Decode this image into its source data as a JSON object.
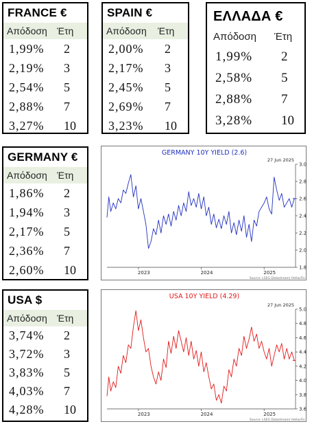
{
  "tables": {
    "france": {
      "title": "FRANCE €",
      "header": [
        "Απόδοση",
        "Έτη"
      ],
      "rows": [
        [
          "1,99%",
          "2"
        ],
        [
          "2,19%",
          "3"
        ],
        [
          "2,54%",
          "5"
        ],
        [
          "2,88%",
          "7"
        ],
        [
          "3,27%",
          "10"
        ]
      ]
    },
    "spain": {
      "title": "SPAIN €",
      "header": [
        "Απόδοση",
        "Έτη"
      ],
      "rows": [
        [
          "2,00%",
          "2"
        ],
        [
          "2,17%",
          "3"
        ],
        [
          "2,45%",
          "5"
        ],
        [
          "2,69%",
          "7"
        ],
        [
          "3,23%",
          "10"
        ]
      ]
    },
    "greece": {
      "title": "ΕΛΛΑΔΑ €",
      "header": [
        "Απόδοση",
        "Έτη"
      ],
      "rows": [
        [
          "1,99%",
          "2"
        ],
        [
          "2,58%",
          "5"
        ],
        [
          "2,88%",
          "7"
        ],
        [
          "3,28%",
          "10"
        ]
      ]
    },
    "germany": {
      "title": "GERMANY €",
      "header": [
        "Απόδοση",
        "Έτη"
      ],
      "rows": [
        [
          "1,86%",
          "2"
        ],
        [
          "1,94%",
          "3"
        ],
        [
          "2,17%",
          "5"
        ],
        [
          "2,36%",
          "7"
        ],
        [
          "2,60%",
          "10"
        ]
      ]
    },
    "usa": {
      "title": "USA $",
      "header": [
        "Απόδοση",
        "Έτη"
      ],
      "rows": [
        [
          "3,74%",
          "2"
        ],
        [
          "3,72%",
          "3"
        ],
        [
          "3,83%",
          "5"
        ],
        [
          "4,03%",
          "7"
        ],
        [
          "4,28%",
          "10"
        ]
      ]
    }
  },
  "chart_data": [
    {
      "type": "line",
      "title": "GERMANY 10Y YIELD  (2.6)",
      "date_label": "27 Jun 2025",
      "source": "Source: LSEG Datastream/ HellasFin",
      "color": "#1f2fbf",
      "x_ticks": [
        "2023",
        "2024",
        "2025"
      ],
      "x_tick_positions": [
        2023.0,
        2024.0,
        2025.0
      ],
      "xlim": [
        2022.5,
        2025.5
      ],
      "ylim": [
        1.8,
        3.0
      ],
      "y_ticks": [
        1.8,
        2.0,
        2.2,
        2.4,
        2.6,
        2.8,
        3.0
      ],
      "y_tick_labels": [
        "1.8",
        "2.0",
        "2.2",
        "2.4",
        "2.6",
        "2.8",
        "3.0"
      ],
      "series": [
        {
          "x": [
            2022.5,
            2022.53,
            2022.56,
            2022.6,
            2022.64,
            2022.68,
            2022.72,
            2022.76,
            2022.8,
            2022.84,
            2022.88,
            2022.92,
            2022.96,
            2023.0,
            2023.04,
            2023.08,
            2023.12,
            2023.16,
            2023.2,
            2023.24,
            2023.28,
            2023.32,
            2023.36,
            2023.4,
            2023.44,
            2023.48,
            2023.52,
            2023.56,
            2023.6,
            2023.64,
            2023.68,
            2023.72,
            2023.76,
            2023.8,
            2023.84,
            2023.88,
            2023.92,
            2023.96,
            2024.0,
            2024.04,
            2024.08,
            2024.12,
            2024.16,
            2024.2,
            2024.24,
            2024.28,
            2024.32,
            2024.36,
            2024.4,
            2024.44,
            2024.48,
            2024.52,
            2024.56,
            2024.6,
            2024.64,
            2024.68,
            2024.72,
            2024.76,
            2024.8,
            2024.84,
            2024.88,
            2024.92,
            2024.96,
            2025.0,
            2025.04,
            2025.08,
            2025.12,
            2025.16,
            2025.2,
            2025.24,
            2025.28,
            2025.32,
            2025.36,
            2025.4,
            2025.44,
            2025.48
          ],
          "y": [
            2.38,
            2.62,
            2.45,
            2.55,
            2.48,
            2.6,
            2.55,
            2.7,
            2.66,
            2.78,
            2.88,
            2.62,
            2.75,
            2.48,
            2.6,
            2.45,
            2.3,
            2.02,
            2.1,
            2.25,
            2.18,
            2.35,
            2.2,
            2.4,
            2.3,
            2.42,
            2.28,
            2.45,
            2.35,
            2.52,
            2.4,
            2.55,
            2.45,
            2.68,
            2.52,
            2.6,
            2.5,
            2.66,
            2.48,
            2.62,
            2.4,
            2.5,
            2.3,
            2.42,
            2.26,
            2.36,
            2.25,
            2.4,
            2.3,
            2.45,
            2.2,
            2.32,
            2.18,
            2.35,
            2.22,
            2.4,
            2.15,
            2.3,
            2.1,
            2.35,
            2.28,
            2.45,
            2.5,
            2.55,
            2.62,
            2.48,
            2.42,
            2.85,
            2.7,
            2.58,
            2.66,
            2.5,
            2.55,
            2.6,
            2.5,
            2.6
          ]
        }
      ]
    },
    {
      "type": "line",
      "title": "USA 10Y YIELD  (4.29)",
      "date_label": "27 Jun 2025",
      "source": "Source: LSEG Datastream/ HellasFin",
      "color": "#e01818",
      "x_ticks": [
        "2023",
        "2024",
        "2025"
      ],
      "x_tick_positions": [
        2023.0,
        2024.0,
        2025.0
      ],
      "xlim": [
        2022.5,
        2025.5
      ],
      "ylim": [
        3.6,
        5.0
      ],
      "y_ticks": [
        3.6,
        3.8,
        4.0,
        4.2,
        4.4,
        4.6,
        4.8,
        5.0
      ],
      "y_tick_labels": [
        "3.6",
        "3.8",
        "4.0",
        "4.2",
        "4.4",
        "4.6",
        "4.8",
        "5.0"
      ],
      "series": [
        {
          "x": [
            2022.5,
            2022.53,
            2022.56,
            2022.6,
            2022.64,
            2022.68,
            2022.72,
            2022.76,
            2022.8,
            2022.84,
            2022.88,
            2022.92,
            2022.96,
            2023.0,
            2023.04,
            2023.08,
            2023.12,
            2023.16,
            2023.2,
            2023.24,
            2023.28,
            2023.32,
            2023.36,
            2023.4,
            2023.44,
            2023.48,
            2023.52,
            2023.56,
            2023.6,
            2023.64,
            2023.68,
            2023.72,
            2023.76,
            2023.8,
            2023.84,
            2023.88,
            2023.92,
            2023.96,
            2024.0,
            2024.04,
            2024.08,
            2024.12,
            2024.16,
            2024.2,
            2024.24,
            2024.28,
            2024.32,
            2024.36,
            2024.4,
            2024.44,
            2024.48,
            2024.52,
            2024.56,
            2024.6,
            2024.64,
            2024.68,
            2024.72,
            2024.76,
            2024.8,
            2024.84,
            2024.88,
            2024.92,
            2024.96,
            2025.0,
            2025.04,
            2025.08,
            2025.12,
            2025.16,
            2025.2,
            2025.24,
            2025.28,
            2025.32,
            2025.36,
            2025.4,
            2025.44,
            2025.48
          ],
          "y": [
            3.78,
            4.05,
            3.85,
            3.98,
            3.9,
            4.2,
            4.1,
            4.35,
            4.25,
            4.5,
            4.45,
            4.75,
            4.98,
            4.7,
            4.85,
            4.6,
            4.4,
            4.45,
            4.2,
            4.05,
            3.95,
            4.12,
            4.0,
            4.3,
            4.18,
            4.55,
            4.38,
            4.62,
            4.45,
            4.7,
            4.55,
            4.4,
            4.6,
            4.35,
            4.55,
            4.3,
            4.42,
            4.2,
            4.4,
            4.12,
            4.25,
            4.05,
            3.88,
            3.95,
            3.72,
            3.8,
            3.68,
            3.92,
            3.85,
            4.15,
            4.05,
            4.3,
            4.2,
            4.45,
            4.35,
            4.62,
            4.45,
            4.58,
            4.75,
            4.55,
            4.65,
            4.45,
            4.55,
            4.4,
            4.3,
            4.45,
            4.2,
            4.35,
            4.5,
            4.4,
            4.52,
            4.3,
            4.45,
            4.3,
            4.4,
            4.28
          ]
        }
      ]
    }
  ]
}
